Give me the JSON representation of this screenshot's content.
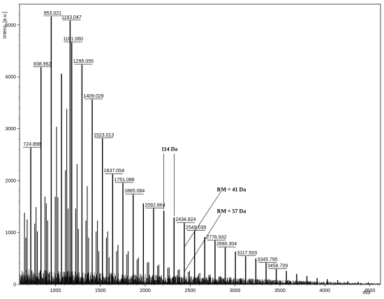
{
  "chart_data": {
    "type": "line",
    "xlabel": "m/z",
    "ylabel": "Intens. [a.u.]",
    "xlim": [
      600,
      4620
    ],
    "ylim": [
      0,
      5400
    ],
    "x_ticks": [
      1000,
      1500,
      2000,
      2500,
      3000,
      3500,
      4000,
      4500
    ],
    "y_ticks": [
      0,
      1000,
      2000,
      3000,
      4000,
      5000
    ],
    "grid": false,
    "labeled_peaks": [
      {
        "x": 724.898,
        "y": 2630,
        "label": "724.898"
      },
      {
        "x": 838.962,
        "y": 4180,
        "label": "838.962"
      },
      {
        "x": 953.021,
        "y": 5160,
        "label": "953.021"
      },
      {
        "x": 1067.0,
        "y": 4060,
        "label": ""
      },
      {
        "x": 1163.047,
        "y": 5080,
        "label": "1163.047"
      },
      {
        "x": 1181.06,
        "y": 4660,
        "label": "1181.060"
      },
      {
        "x": 1295.055,
        "y": 4230,
        "label": "1295.055"
      },
      {
        "x": 1409.028,
        "y": 3560,
        "label": "1409.028"
      },
      {
        "x": 1523.013,
        "y": 2810,
        "label": "1523.013"
      },
      {
        "x": 1637.054,
        "y": 2120,
        "label": "1637.054"
      },
      {
        "x": 1751.086,
        "y": 1950,
        "label": "1751.086"
      },
      {
        "x": 1865.084,
        "y": 1730,
        "label": "1865.084"
      },
      {
        "x": 1979.1,
        "y": 1560,
        "label": ""
      },
      {
        "x": 2092.864,
        "y": 1460,
        "label": "2092.864"
      },
      {
        "x": 2206.9,
        "y": 1420,
        "label": ""
      },
      {
        "x": 2320.9,
        "y": 1290,
        "label": ""
      },
      {
        "x": 2434.824,
        "y": 1180,
        "label": "2434.824"
      },
      {
        "x": 2549.039,
        "y": 1030,
        "label": "2549.039"
      },
      {
        "x": 2662.9,
        "y": 910,
        "label": ""
      },
      {
        "x": 2776.932,
        "y": 840,
        "label": "2776.932"
      },
      {
        "x": 2890.304,
        "y": 710,
        "label": "2890.304"
      },
      {
        "x": 3004.0,
        "y": 630,
        "label": ""
      },
      {
        "x": 3117.503,
        "y": 540,
        "label": "3117.503"
      },
      {
        "x": 3231.6,
        "y": 500,
        "label": ""
      },
      {
        "x": 3345.795,
        "y": 410,
        "label": "3345.795"
      },
      {
        "x": 3458.709,
        "y": 290,
        "label": "3458.709"
      },
      {
        "x": 3572.0,
        "y": 260,
        "label": ""
      },
      {
        "x": 3686.0,
        "y": 200,
        "label": ""
      },
      {
        "x": 3800.0,
        "y": 160,
        "label": ""
      },
      {
        "x": 3914.0,
        "y": 120,
        "label": ""
      },
      {
        "x": 4028.0,
        "y": 100,
        "label": ""
      },
      {
        "x": 4142.0,
        "y": 80,
        "label": ""
      },
      {
        "x": 4256.0,
        "y": 60,
        "label": ""
      },
      {
        "x": 4370.0,
        "y": 50,
        "label": ""
      },
      {
        "x": 4484.0,
        "y": 40,
        "label": ""
      }
    ],
    "minor_peaks": [
      {
        "x": 655,
        "y": 1380
      },
      {
        "x": 670,
        "y": 900
      },
      {
        "x": 685,
        "y": 1250
      },
      {
        "x": 769,
        "y": 1170
      },
      {
        "x": 784,
        "y": 1490
      },
      {
        "x": 799,
        "y": 1020
      },
      {
        "x": 883,
        "y": 1690
      },
      {
        "x": 898,
        "y": 1560
      },
      {
        "x": 913,
        "y": 1230
      },
      {
        "x": 997,
        "y": 1690
      },
      {
        "x": 1012,
        "y": 3040
      },
      {
        "x": 1027,
        "y": 1680
      },
      {
        "x": 1111,
        "y": 2200
      },
      {
        "x": 1126,
        "y": 3380
      },
      {
        "x": 1141,
        "y": 1460
      },
      {
        "x": 1225,
        "y": 1460
      },
      {
        "x": 1240,
        "y": 2320
      },
      {
        "x": 1255,
        "y": 1070
      },
      {
        "x": 1339,
        "y": 1230
      },
      {
        "x": 1354,
        "y": 1890
      },
      {
        "x": 1369,
        "y": 900
      },
      {
        "x": 1453,
        "y": 1020
      },
      {
        "x": 1468,
        "y": 1230
      },
      {
        "x": 1483,
        "y": 640
      },
      {
        "x": 1567,
        "y": 900
      },
      {
        "x": 1582,
        "y": 1020
      },
      {
        "x": 1597,
        "y": 520
      },
      {
        "x": 1681,
        "y": 640
      },
      {
        "x": 1696,
        "y": 760
      },
      {
        "x": 1795,
        "y": 580
      },
      {
        "x": 1810,
        "y": 640
      },
      {
        "x": 1909,
        "y": 480
      },
      {
        "x": 1924,
        "y": 520
      },
      {
        "x": 2023,
        "y": 420
      },
      {
        "x": 2038,
        "y": 430
      },
      {
        "x": 2137,
        "y": 360
      },
      {
        "x": 2152,
        "y": 380
      },
      {
        "x": 2251,
        "y": 320
      },
      {
        "x": 2266,
        "y": 330
      },
      {
        "x": 2365,
        "y": 280
      },
      {
        "x": 2380,
        "y": 290
      },
      {
        "x": 2479,
        "y": 240
      },
      {
        "x": 2494,
        "y": 260
      },
      {
        "x": 2593,
        "y": 200
      },
      {
        "x": 2608,
        "y": 220
      },
      {
        "x": 2707,
        "y": 180
      },
      {
        "x": 2722,
        "y": 190
      },
      {
        "x": 2821,
        "y": 150
      },
      {
        "x": 2836,
        "y": 160
      },
      {
        "x": 2935,
        "y": 130
      },
      {
        "x": 2950,
        "y": 140
      },
      {
        "x": 3049,
        "y": 110
      },
      {
        "x": 3064,
        "y": 120
      },
      {
        "x": 3163,
        "y": 100
      },
      {
        "x": 3277,
        "y": 90
      },
      {
        "x": 3391,
        "y": 80
      },
      {
        "x": 3505,
        "y": 70
      },
      {
        "x": 3619,
        "y": 60
      },
      {
        "x": 3733,
        "y": 50
      }
    ],
    "annotations": [
      {
        "text": "114 Da",
        "x_from": 2206.9,
        "x_to": 2320.9,
        "y_level": 2520,
        "text_x": 2270,
        "text_y": 2570
      },
      {
        "text": "RM = 41 Da",
        "x_from": 2434.824,
        "x_to": 2840,
        "y_from": 720,
        "y_to": 1780,
        "text_x": 2960,
        "text_y": 1790
      },
      {
        "text": "RM = 57 Da",
        "x_from": 2434.824,
        "x_to": 2840,
        "y_from": 240,
        "y_to": 1350,
        "text_x": 2960,
        "text_y": 1380
      }
    ]
  }
}
